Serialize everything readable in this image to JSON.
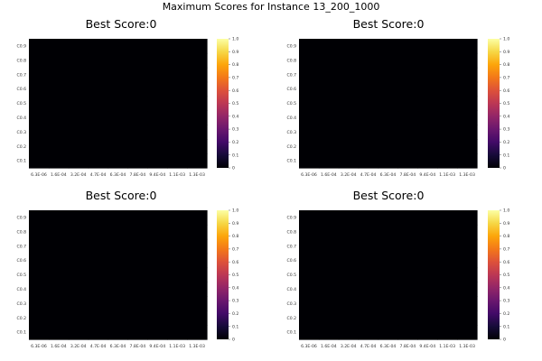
{
  "figure": {
    "title": "Maximum Scores for Instance 13_200_1000"
  },
  "chart_data": [
    {
      "type": "heatmap",
      "title": "Best Score:0",
      "x_ticks": [
        "6.3E-06",
        "1.6E-04",
        "3.2E-04",
        "4.7E-04",
        "6.3E-04",
        "7.8E-04",
        "9.4E-04",
        "1.1E-03",
        "1.3E-03"
      ],
      "y_ticks": [
        "C0.1",
        "C0.2",
        "C0.3",
        "C0.4",
        "C0.5",
        "C0.6",
        "C0.7",
        "C0.8",
        "C0.9"
      ],
      "values_all": 0,
      "colorbar": {
        "min": 0,
        "max": 1,
        "ticks": [
          "0",
          "0.1",
          "0.2",
          "0.3",
          "0.4",
          "0.5",
          "0.6",
          "0.7",
          "0.8",
          "0.9",
          "1.0"
        ],
        "colormap": "inferno"
      }
    },
    {
      "type": "heatmap",
      "title": "Best Score:0",
      "x_ticks": [
        "6.3E-06",
        "1.6E-04",
        "3.2E-04",
        "4.7E-04",
        "6.3E-04",
        "7.8E-04",
        "9.4E-04",
        "1.1E-03",
        "1.3E-03"
      ],
      "y_ticks": [
        "C0.1",
        "C0.2",
        "C0.3",
        "C0.4",
        "C0.5",
        "C0.6",
        "C0.7",
        "C0.8",
        "C0.9"
      ],
      "values_all": 0,
      "colorbar": {
        "min": 0,
        "max": 1,
        "ticks": [
          "0",
          "0.1",
          "0.2",
          "0.3",
          "0.4",
          "0.5",
          "0.6",
          "0.7",
          "0.8",
          "0.9",
          "1.0"
        ],
        "colormap": "inferno"
      }
    },
    {
      "type": "heatmap",
      "title": "Best Score:0",
      "x_ticks": [
        "6.3E-06",
        "1.6E-04",
        "3.2E-04",
        "4.7E-04",
        "6.3E-04",
        "7.8E-04",
        "9.4E-04",
        "1.1E-03",
        "1.3E-03"
      ],
      "y_ticks": [
        "C0.1",
        "C0.2",
        "C0.3",
        "C0.4",
        "C0.5",
        "C0.6",
        "C0.7",
        "C0.8",
        "C0.9"
      ],
      "values_all": 0,
      "colorbar": {
        "min": 0,
        "max": 1,
        "ticks": [
          "0",
          "0.1",
          "0.2",
          "0.3",
          "0.4",
          "0.5",
          "0.6",
          "0.7",
          "0.8",
          "0.9",
          "1.0"
        ],
        "colormap": "inferno"
      }
    },
    {
      "type": "heatmap",
      "title": "Best Score:0",
      "x_ticks": [
        "6.3E-06",
        "1.6E-04",
        "3.2E-04",
        "4.7E-04",
        "6.3E-04",
        "7.8E-04",
        "9.4E-04",
        "1.1E-03",
        "1.3E-03"
      ],
      "y_ticks": [
        "C0.1",
        "C0.2",
        "C0.3",
        "C0.4",
        "C0.5",
        "C0.6",
        "C0.7",
        "C0.8",
        "C0.9"
      ],
      "values_all": 0,
      "colorbar": {
        "min": 0,
        "max": 1,
        "ticks": [
          "0",
          "0.1",
          "0.2",
          "0.3",
          "0.4",
          "0.5",
          "0.6",
          "0.7",
          "0.8",
          "0.9",
          "1.0"
        ],
        "colormap": "inferno"
      }
    }
  ]
}
